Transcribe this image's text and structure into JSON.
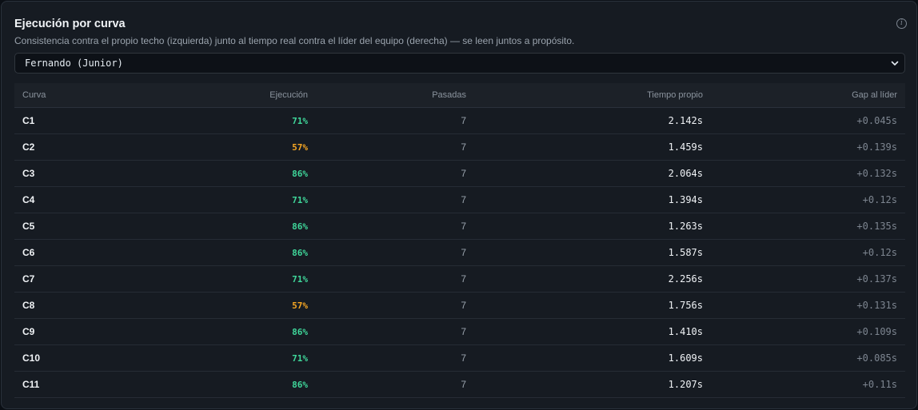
{
  "panel": {
    "title": "Ejecución por curva",
    "subtitle": "Consistencia contra el propio techo (izquierda) junto al tiempo real contra el líder del equipo (derecha) — se leen juntos a propósito.",
    "info_icon": "info-icon"
  },
  "driver_select": {
    "value": "Fernando (Junior)",
    "icon": "chevron-down-icon"
  },
  "table": {
    "headers": {
      "curve": "Curva",
      "execution": "Ejecución",
      "passes": "Pasadas",
      "own_time": "Tiempo propio",
      "gap": "Gap al líder"
    },
    "rows": [
      {
        "curve": "C1",
        "execution": "71%",
        "passes": "7",
        "own_time": "2.142s",
        "gap": "+0.045s",
        "exec_color": "#3fd69a"
      },
      {
        "curve": "C2",
        "execution": "57%",
        "passes": "7",
        "own_time": "1.459s",
        "gap": "+0.139s",
        "exec_color": "#f5a623"
      },
      {
        "curve": "C3",
        "execution": "86%",
        "passes": "7",
        "own_time": "2.064s",
        "gap": "+0.132s",
        "exec_color": "#3fd69a"
      },
      {
        "curve": "C4",
        "execution": "71%",
        "passes": "7",
        "own_time": "1.394s",
        "gap": "+0.12s",
        "exec_color": "#3fd69a"
      },
      {
        "curve": "C5",
        "execution": "86%",
        "passes": "7",
        "own_time": "1.263s",
        "gap": "+0.135s",
        "exec_color": "#3fd69a"
      },
      {
        "curve": "C6",
        "execution": "86%",
        "passes": "7",
        "own_time": "1.587s",
        "gap": "+0.12s",
        "exec_color": "#3fd69a"
      },
      {
        "curve": "C7",
        "execution": "71%",
        "passes": "7",
        "own_time": "2.256s",
        "gap": "+0.137s",
        "exec_color": "#3fd69a"
      },
      {
        "curve": "C8",
        "execution": "57%",
        "passes": "7",
        "own_time": "1.756s",
        "gap": "+0.131s",
        "exec_color": "#f5a623"
      },
      {
        "curve": "C9",
        "execution": "86%",
        "passes": "7",
        "own_time": "1.410s",
        "gap": "+0.109s",
        "exec_color": "#3fd69a"
      },
      {
        "curve": "C10",
        "execution": "71%",
        "passes": "7",
        "own_time": "1.609s",
        "gap": "+0.085s",
        "exec_color": "#3fd69a"
      },
      {
        "curve": "C11",
        "execution": "86%",
        "passes": "7",
        "own_time": "1.207s",
        "gap": "+0.11s",
        "exec_color": "#3fd69a"
      }
    ]
  }
}
